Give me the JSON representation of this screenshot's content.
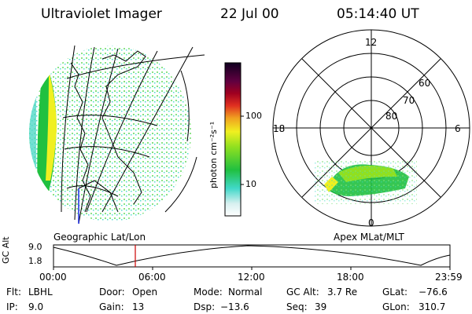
{
  "header": {
    "title": "Ultraviolet Imager",
    "date": "22 Jul 00",
    "time": "05:14:40 UT"
  },
  "geo_panel": {
    "label": "Geographic Lat/Lon"
  },
  "colorbar": {
    "unit": "photon cm⁻²s⁻¹",
    "ticks": [
      "100",
      "10"
    ]
  },
  "polar_panel": {
    "label": "Apex MLat/MLT",
    "mlt_labels": {
      "top": "12",
      "left": "18",
      "right": "6",
      "bottom": "0"
    },
    "lat_labels": [
      "60",
      "70",
      "80"
    ]
  },
  "timeline": {
    "ylabel": "GC Alt",
    "ticks_y": [
      "9.0",
      "1.8"
    ],
    "ticks_x": [
      "00:00",
      "06:00",
      "12:00",
      "18:00",
      "23:59"
    ],
    "marker_color": "#cc0000"
  },
  "info": {
    "row1": [
      {
        "label": "Flt:",
        "value": "LBHL"
      },
      {
        "label": "Door:",
        "value": "Open"
      },
      {
        "label": "Mode:",
        "value": "Normal"
      },
      {
        "label": "GC Alt:",
        "value": "3.7 Re"
      },
      {
        "label": "GLat:",
        "value": "−76.6"
      }
    ],
    "row2": [
      {
        "label": "IP:",
        "value": "9.0"
      },
      {
        "label": "Gain:",
        "value": "13"
      },
      {
        "label": "Dsp:",
        "value": "−13.6"
      },
      {
        "label": "Seq:",
        "value": "39"
      },
      {
        "label": "GLon:",
        "value": "310.7"
      }
    ]
  }
}
